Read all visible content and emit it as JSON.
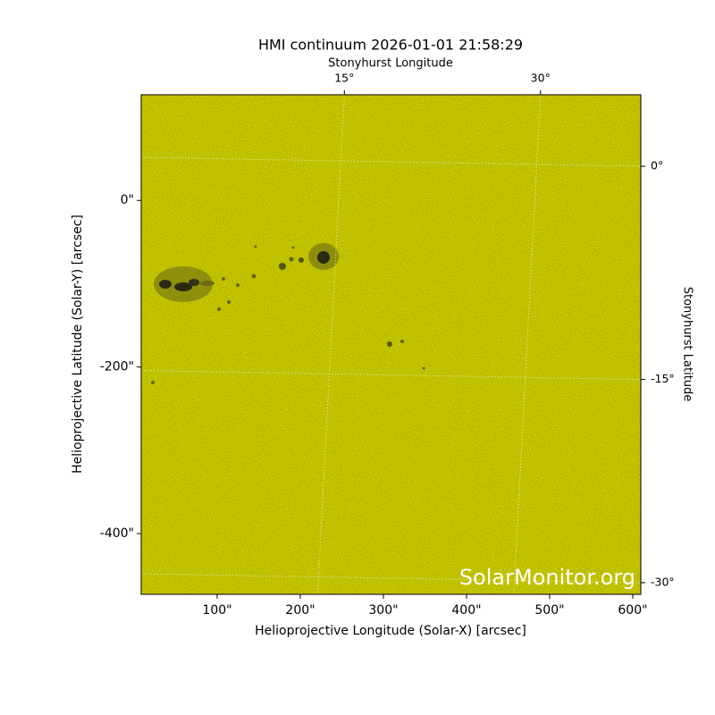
{
  "chart_data": {
    "type": "image",
    "title": "HMI continuum 2026-01-01 21:58:29",
    "xlabel": "Helioprojective Longitude (Solar-X) [arcsec]",
    "ylabel": "Helioprojective Latitude (Solar-Y) [arcsec]",
    "x2label": "Stonyhurst Longitude",
    "y2label": "Stonyhurst Latitude",
    "xlim": [
      8.6,
      609.7
    ],
    "ylim": [
      -473,
      126.9
    ],
    "xticks": [
      {
        "value": 100,
        "label": "100\""
      },
      {
        "value": 200,
        "label": "200\""
      },
      {
        "value": 300,
        "label": "300\""
      },
      {
        "value": 400,
        "label": "400\""
      },
      {
        "value": 500,
        "label": "500\""
      },
      {
        "value": 600,
        "label": "600\""
      }
    ],
    "yticks": [
      {
        "value": 0,
        "label": "0\""
      },
      {
        "value": -200,
        "label": "-200\""
      },
      {
        "value": -400,
        "label": "-400\""
      }
    ],
    "x2ticks": [
      {
        "value": 253,
        "label": "15°"
      },
      {
        "value": 489,
        "label": "30°"
      }
    ],
    "y2ticks": [
      {
        "value": 41,
        "label": "0°"
      },
      {
        "value": -215,
        "label": "-15°"
      },
      {
        "value": -459,
        "label": "-30°"
      }
    ],
    "grid": true,
    "color": "#cfcf00",
    "watermark": "SolarMonitor.org"
  }
}
